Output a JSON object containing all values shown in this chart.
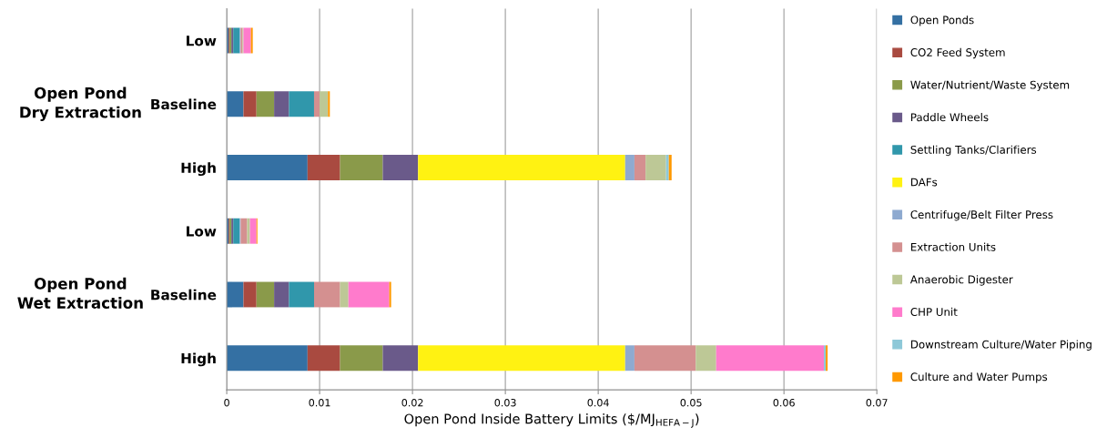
{
  "chart_data": {
    "type": "bar",
    "orientation": "horizontal",
    "stacked": true,
    "xlabel": "Open Pond Inside Battery Limits ($/MJ$_{HEFA−J}$)",
    "categories": [
      "Low",
      "Baseline",
      "High",
      "Low",
      "Baseline",
      "High"
    ],
    "annotations": [
      "Open Pond\nDry Extraction",
      "Open Pond\nWet Extraction"
    ],
    "xlim": [
      0,
      0.07
    ],
    "xticks": [
      0,
      0.01,
      0.02,
      0.03,
      0.04,
      0.05,
      0.06,
      0.07
    ],
    "grid": "x",
    "legend": "right",
    "series": [
      {
        "name": "Open Ponds",
        "color": "#3470a3",
        "values": [
          0.0002,
          0.0018,
          0.0087,
          0.0002,
          0.0018,
          0.0087
        ]
      },
      {
        "name": "CO2 Feed System",
        "color": "#a94a40",
        "values": [
          0.0001,
          0.0014,
          0.0035,
          0.0001,
          0.0014,
          0.0035
        ]
      },
      {
        "name": "Water/Nutrient/Waste System",
        "color": "#8a9a4a",
        "values": [
          0.0002,
          0.0019,
          0.0046,
          0.0002,
          0.0019,
          0.0046
        ]
      },
      {
        "name": "Paddle Wheels",
        "color": "#6a5a8a",
        "values": [
          0.0002,
          0.0016,
          0.0038,
          0.0002,
          0.0016,
          0.0038
        ]
      },
      {
        "name": "Settling Tanks/Clarifiers",
        "color": "#3097ab",
        "values": [
          0.0007,
          0.0027,
          0,
          0.0007,
          0.0027,
          0
        ]
      },
      {
        "name": "DAFs",
        "color": "#fff212",
        "values": [
          0,
          0,
          0.0223,
          0,
          0,
          0.0223
        ]
      },
      {
        "name": "Centrifuge/Belt Filter Press",
        "color": "#8eaad0",
        "values": [
          0.0001,
          0,
          0.001,
          0.0001,
          0,
          0.001
        ]
      },
      {
        "name": "Extraction Units",
        "color": "#d49090",
        "values": [
          0.0002,
          0.0006,
          0.0012,
          0.0007,
          0.0028,
          0.0066
        ]
      },
      {
        "name": "Anaerobic Digester",
        "color": "#bdc896",
        "values": [
          0.0001,
          0.0009,
          0.0022,
          0.0003,
          0.0009,
          0.0022
        ]
      },
      {
        "name": "CHP Unit",
        "color": "#ff7bcc",
        "values": [
          0.0008,
          0,
          0,
          0.0007,
          0.0044,
          0.0116
        ]
      },
      {
        "name": "Downstream Culture/Water Piping",
        "color": "#8dc8d8",
        "values": [
          0,
          0,
          0.0003,
          0,
          0,
          0.0002
        ]
      },
      {
        "name": "Culture and Water Pumps",
        "color": "#ff9900",
        "values": [
          0.0002,
          0.0002,
          0.0003,
          0.0001,
          0.0002,
          0.0002
        ]
      }
    ]
  }
}
